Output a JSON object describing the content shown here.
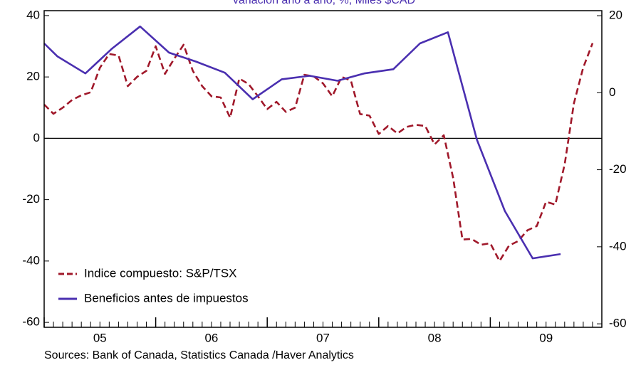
{
  "chart_data": {
    "type": "line",
    "title": "variación año a año, %, Miles $CAD",
    "source": "Sources:  Bank of Canada, Statistics Canada /Haver Analytics",
    "xlim": [
      2005,
      2010
    ],
    "xticks": [
      {
        "value": 2005.5,
        "label": "05"
      },
      {
        "value": 2006.5,
        "label": "06"
      },
      {
        "value": 2007.5,
        "label": "07"
      },
      {
        "value": 2008.5,
        "label": "08"
      },
      {
        "value": 2009.5,
        "label": "09"
      }
    ],
    "ylim": [
      -61.6,
      41.6
    ],
    "yticks": [
      40,
      20,
      0,
      -20,
      -40,
      -60
    ],
    "y2lim": [
      -60.9,
      21.3
    ],
    "y2ticks": [
      20,
      0,
      -20,
      -40,
      -60
    ],
    "legend": "lower left",
    "series": [
      {
        "name": "Indice compuesto: S&P/TSX",
        "color": "#a0182a",
        "dashed": true,
        "x": [
          2005,
          2005.083,
          2005.167,
          2005.25,
          2005.333,
          2005.417,
          2005.5,
          2005.583,
          2005.667,
          2005.75,
          2005.833,
          2005.917,
          2006,
          2006.083,
          2006.167,
          2006.25,
          2006.333,
          2006.417,
          2006.5,
          2006.583,
          2006.667,
          2006.75,
          2006.833,
          2006.917,
          2007,
          2007.083,
          2007.167,
          2007.25,
          2007.333,
          2007.417,
          2007.5,
          2007.583,
          2007.667,
          2007.75,
          2007.833,
          2007.917,
          2008,
          2008.083,
          2008.167,
          2008.25,
          2008.333,
          2008.417,
          2008.5,
          2008.583,
          2008.667,
          2008.75,
          2008.833,
          2008.917,
          2009,
          2009.083,
          2009.167,
          2009.25,
          2009.333,
          2009.417,
          2009.5,
          2009.583,
          2009.667,
          2009.75,
          2009.833,
          2009.917
        ],
        "values": [
          11,
          8,
          10,
          12.5,
          14,
          15,
          23,
          27.5,
          27,
          17,
          20,
          22,
          30,
          21,
          26,
          30.5,
          22,
          17,
          13.7,
          13.3,
          6.7,
          19.5,
          17.7,
          13.7,
          9.5,
          11.9,
          8.6,
          10,
          20.7,
          20.2,
          17.9,
          13.7,
          20,
          18.8,
          7.9,
          7.4,
          1.4,
          4,
          1.6,
          3.7,
          4.4,
          4,
          -2,
          1,
          -13,
          -33,
          -32.8,
          -34.7,
          -34.2,
          -40,
          -35,
          -33.5,
          -30,
          -28.6,
          -20.7,
          -21.6,
          -8.4,
          11.4,
          23,
          31
        ]
      },
      {
        "name": "Beneficios antes de impuestos",
        "color": "#4a2fb0",
        "axis": "y2",
        "x": [
          2005,
          2005.12,
          2005.37,
          2005.61,
          2005.86,
          2006.12,
          2006.36,
          2006.62,
          2006.87,
          2007.13,
          2007.38,
          2007.63,
          2007.87,
          2008.13,
          2008.37,
          2008.62,
          2008.88,
          2009.13,
          2009.38,
          2009.63
        ],
        "values": [
          12.8,
          9.4,
          5,
          11.5,
          17.2,
          10.4,
          8.1,
          5.2,
          -1.7,
          3.5,
          4.4,
          3.1,
          5,
          6.1,
          12.8,
          15.7,
          -12.2,
          -30.7,
          -43,
          -41.9
        ]
      }
    ]
  }
}
